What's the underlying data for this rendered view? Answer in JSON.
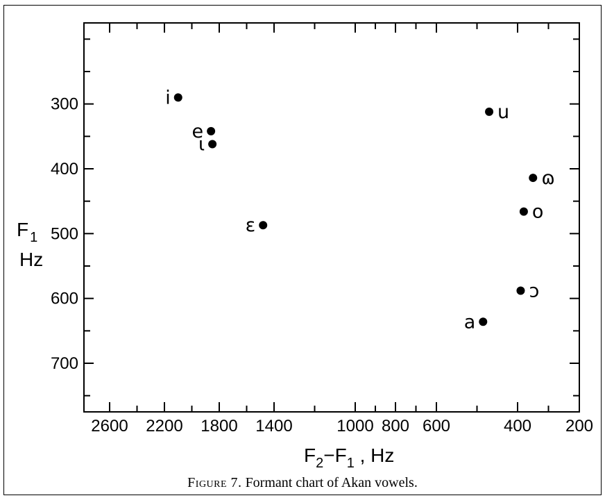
{
  "chart_data": {
    "type": "scatter",
    "title": "",
    "xlabel": {
      "main": "F",
      "sub1": "2",
      "mid": "−F",
      "sub2": "1",
      "end": " , Hz"
    },
    "ylabel": {
      "line1_main": "F",
      "line1_sub": "1",
      "line2": "Hz"
    },
    "x_axis": {
      "tick_values": [
        2600,
        2200,
        1800,
        1400,
        1000,
        800,
        600,
        400,
        200
      ],
      "tick_labels": [
        "2600",
        "2200",
        "1800",
        "1400",
        "1000",
        "800",
        "600",
        "400",
        "200"
      ],
      "minor_tick_values": [
        2400,
        2000,
        1600,
        1200,
        900,
        700,
        500,
        300
      ]
    },
    "y_axis": {
      "range": [
        175,
        775
      ],
      "inverted": true,
      "tick_values": [
        300,
        400,
        500,
        600,
        700
      ],
      "tick_labels": [
        "300",
        "400",
        "500",
        "600",
        "700"
      ],
      "minor_tick_values": [
        200,
        250,
        350,
        450,
        550,
        650,
        750
      ]
    },
    "points": [
      {
        "label": "i",
        "x": 2100,
        "y": 290,
        "label_side": "left"
      },
      {
        "label": "e",
        "x": 1860,
        "y": 342,
        "label_side": "left"
      },
      {
        "label": "ɩ",
        "x": 1850,
        "y": 362,
        "label_side": "left"
      },
      {
        "label": "ɛ",
        "x": 1480,
        "y": 487,
        "label_side": "left"
      },
      {
        "label": "u",
        "x": 470,
        "y": 312,
        "label_side": "right"
      },
      {
        "label": "ɷ",
        "x": 350,
        "y": 414,
        "label_side": "right"
      },
      {
        "label": "o",
        "x": 380,
        "y": 466,
        "label_side": "right"
      },
      {
        "label": "ɔ",
        "x": 390,
        "y": 588,
        "label_side": "right"
      },
      {
        "label": "a",
        "x": 485,
        "y": 636,
        "label_side": "left"
      }
    ],
    "grid": false,
    "legend": "none"
  },
  "caption": {
    "figure": "Figure 7.",
    "text": "Formant chart of Akan vowels."
  }
}
